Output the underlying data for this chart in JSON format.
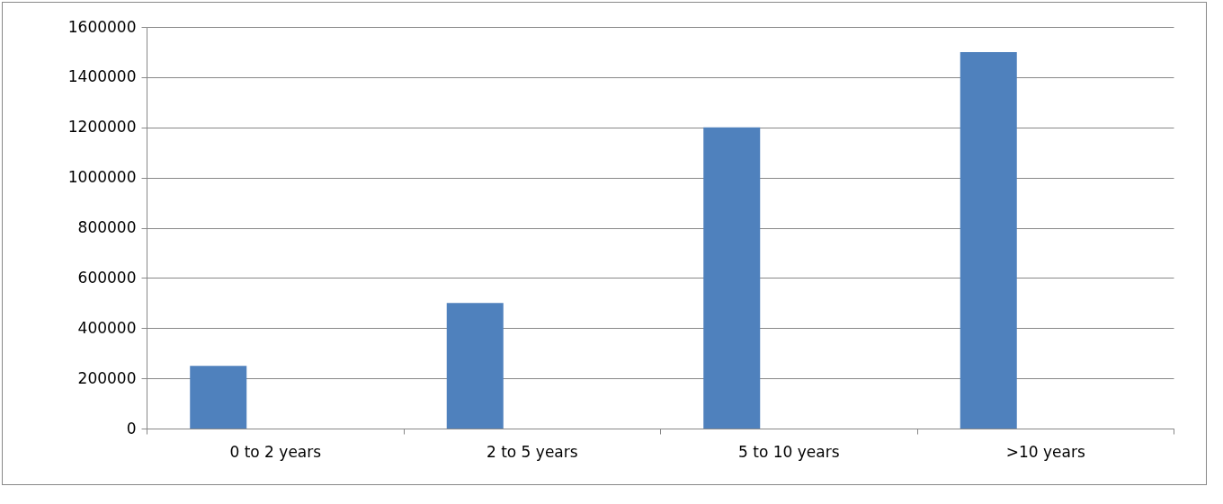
{
  "chart_data": {
    "type": "bar",
    "categories": [
      "0 to 2 years",
      "2 to 5 years",
      "5 to 10 years",
      ">10 years"
    ],
    "values": [
      250000,
      500000,
      1200000,
      1500000
    ],
    "color": "#4f81bd",
    "ylim": [
      0,
      1600000
    ],
    "yticks": [
      0,
      200000,
      400000,
      600000,
      800000,
      1000000,
      1200000,
      1400000,
      1600000
    ],
    "grid": "y"
  }
}
